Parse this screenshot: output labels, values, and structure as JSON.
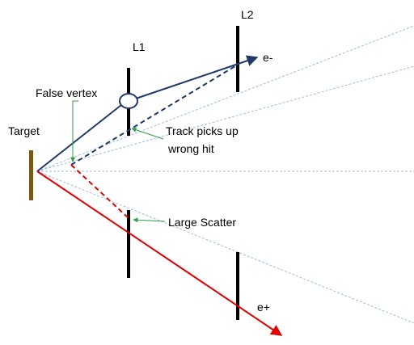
{
  "labels": {
    "l1": "L1",
    "l2": "L2",
    "target": "Target",
    "false_vertex": "False vertex",
    "wrong_hit_line1": "Track picks up",
    "wrong_hit_line2": "wrong hit",
    "large_scatter": "Large Scatter",
    "electron": "e-",
    "positron": "e+"
  },
  "colors": {
    "electron_track": "#1f3a68",
    "positron_track": "#e00000",
    "acceptance_lines": "#9fbedf",
    "target": "#7a5a10",
    "layer": "#000000",
    "annotation_arrow": "#2e9e48"
  }
}
